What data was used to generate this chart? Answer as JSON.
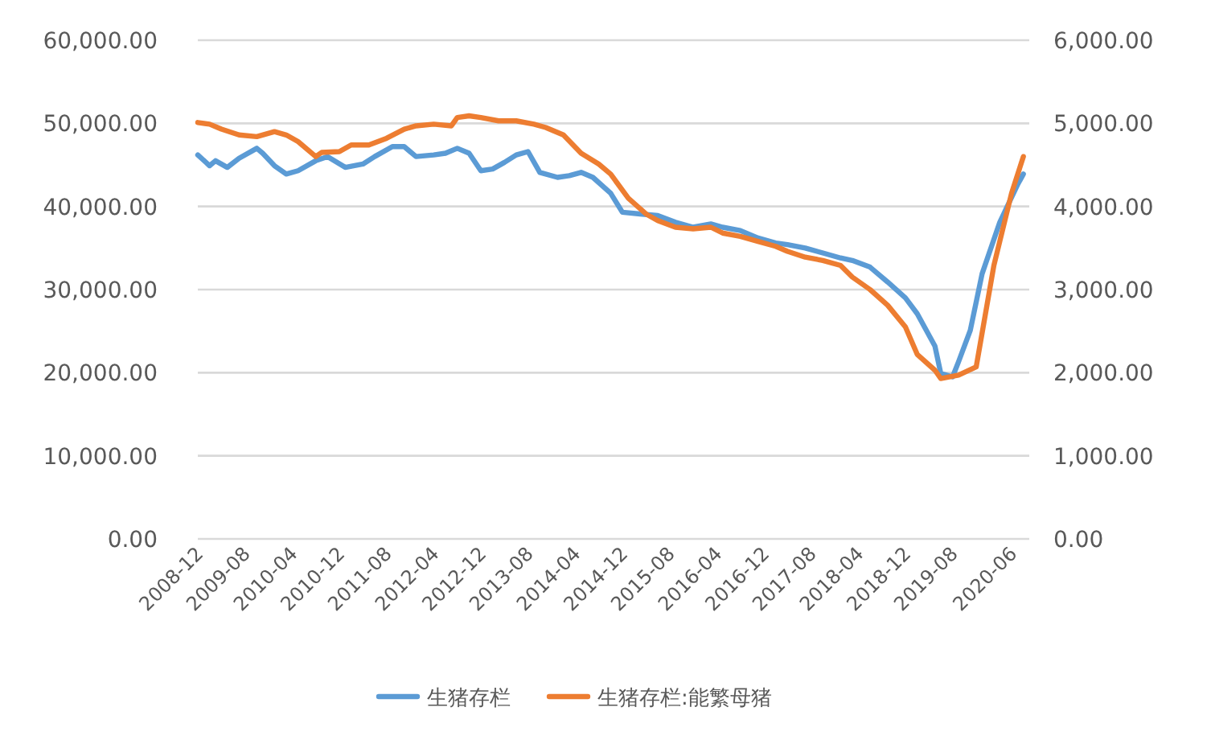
{
  "chart_data": {
    "type": "line",
    "grid": "y",
    "legend": "bottom",
    "xlim": [
      "2008-12",
      "2020-09"
    ],
    "xticks": [
      "2008-12",
      "2009-08",
      "2010-04",
      "2010-12",
      "2011-08",
      "2012-04",
      "2012-12",
      "2013-08",
      "2014-04",
      "2014-12",
      "2015-08",
      "2016-04",
      "2016-12",
      "2017-08",
      "2018-04",
      "2018-12",
      "2019-08",
      "2020-06"
    ],
    "ylim": [
      0,
      60000
    ],
    "yticks": [
      {
        "value": 0,
        "label": "0.00"
      },
      {
        "value": 10000,
        "label": "10,000.00"
      },
      {
        "value": 20000,
        "label": "20,000.00"
      },
      {
        "value": 30000,
        "label": "30,000.00"
      },
      {
        "value": 40000,
        "label": "40,000.00"
      },
      {
        "value": 50000,
        "label": "50,000.00"
      },
      {
        "value": 60000,
        "label": "60,000.00"
      }
    ],
    "y2lim": [
      0,
      6000
    ],
    "y2ticks": [
      {
        "value": 0,
        "label": "0.00"
      },
      {
        "value": 1000,
        "label": "1,000.00"
      },
      {
        "value": 2000,
        "label": "2,000.00"
      },
      {
        "value": 3000,
        "label": "3,000.00"
      },
      {
        "value": 4000,
        "label": "4,000.00"
      },
      {
        "value": 5000,
        "label": "5,000.00"
      },
      {
        "value": 6000,
        "label": "6,000.00"
      }
    ],
    "series": [
      {
        "name": "生猪存栏",
        "color": "#5b9bd5",
        "x": [
          "2008-12",
          "2009-02",
          "2009-03",
          "2009-05",
          "2009-07",
          "2009-10",
          "2009-11",
          "2010-01",
          "2010-03",
          "2010-05",
          "2010-08",
          "2010-10",
          "2011-01",
          "2011-04",
          "2011-06",
          "2011-09",
          "2011-11",
          "2012-01",
          "2012-04",
          "2012-06",
          "2012-08",
          "2012-10",
          "2012-12",
          "2013-02",
          "2013-04",
          "2013-06",
          "2013-08",
          "2013-10",
          "2014-01",
          "2014-03",
          "2014-05",
          "2014-07",
          "2014-10",
          "2014-12",
          "2015-03",
          "2015-06",
          "2015-09",
          "2015-12",
          "2016-03",
          "2016-05",
          "2016-08",
          "2016-11",
          "2017-02",
          "2017-04",
          "2017-07",
          "2017-10",
          "2018-01",
          "2018-03",
          "2018-06",
          "2018-09",
          "2018-12",
          "2019-02",
          "2019-05",
          "2019-06",
          "2019-08",
          "2019-09",
          "2019-11",
          "2020-01",
          "2020-04",
          "2020-07",
          "2020-08"
        ],
        "values": [
          46200,
          44900,
          45500,
          44700,
          45800,
          47000,
          46400,
          44900,
          43900,
          44300,
          45500,
          46000,
          44700,
          45100,
          46000,
          47200,
          47200,
          46000,
          46200,
          46400,
          47000,
          46400,
          44300,
          44500,
          45300,
          46200,
          46600,
          44100,
          43500,
          43700,
          44100,
          43500,
          41600,
          39300,
          39100,
          38900,
          38100,
          37500,
          37900,
          37500,
          37100,
          36200,
          35600,
          35400,
          35000,
          34400,
          33800,
          33500,
          32700,
          30900,
          29000,
          27100,
          23200,
          19900,
          19500,
          21300,
          25100,
          31900,
          38100,
          42600,
          43900
        ]
      },
      {
        "name": "生猪存栏:能繁母猪",
        "color": "#ed7d31",
        "axis": "y2",
        "x": [
          "2008-12",
          "2009-02",
          "2009-04",
          "2009-07",
          "2009-10",
          "2010-01",
          "2010-03",
          "2010-05",
          "2010-08",
          "2010-09",
          "2010-12",
          "2011-02",
          "2011-05",
          "2011-08",
          "2011-11",
          "2012-01",
          "2012-04",
          "2012-07",
          "2012-08",
          "2012-10",
          "2012-12",
          "2013-03",
          "2013-06",
          "2013-09",
          "2013-11",
          "2014-02",
          "2014-05",
          "2014-08",
          "2014-10",
          "2015-01",
          "2015-04",
          "2015-06",
          "2015-09",
          "2015-12",
          "2016-03",
          "2016-05",
          "2016-08",
          "2016-11",
          "2017-02",
          "2017-04",
          "2017-07",
          "2017-10",
          "2018-01",
          "2018-03",
          "2018-06",
          "2018-09",
          "2018-12",
          "2019-02",
          "2019-05",
          "2019-06",
          "2019-09",
          "2019-12",
          "2020-03",
          "2020-04",
          "2020-06",
          "2020-08"
        ],
        "values": [
          5010,
          4990,
          4930,
          4860,
          4840,
          4900,
          4860,
          4780,
          4600,
          4650,
          4660,
          4740,
          4740,
          4820,
          4930,
          4970,
          4990,
          4970,
          5070,
          5090,
          5070,
          5030,
          5030,
          4990,
          4950,
          4860,
          4640,
          4510,
          4390,
          4100,
          3910,
          3830,
          3750,
          3730,
          3750,
          3680,
          3640,
          3580,
          3520,
          3460,
          3390,
          3350,
          3290,
          3150,
          3000,
          2810,
          2550,
          2220,
          2030,
          1930,
          1970,
          2070,
          3290,
          3580,
          4160,
          4600
        ]
      }
    ]
  }
}
